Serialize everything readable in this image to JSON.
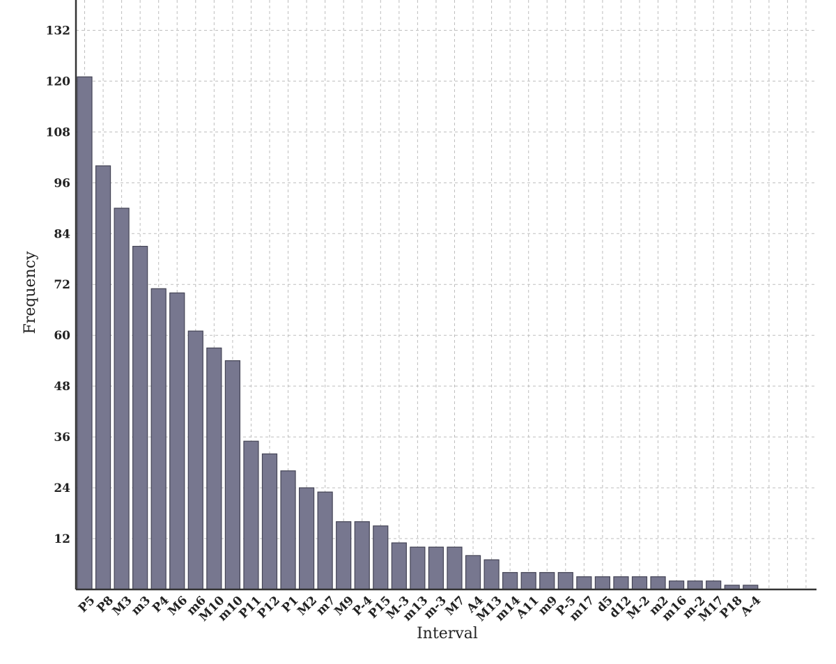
{
  "chart_data": {
    "type": "bar",
    "xlabel": "Interval",
    "ylabel": "Frequency",
    "ylim": [
      0,
      140
    ],
    "yticks": [
      12,
      24,
      36,
      48,
      60,
      72,
      84,
      96,
      108,
      120,
      132
    ],
    "grid": true,
    "bar_color": "#77778f",
    "categories": [
      "P5",
      "P8",
      "M3",
      "m3",
      "P4",
      "M6",
      "m6",
      "M10",
      "m10",
      "P11",
      "P12",
      "P1",
      "M2",
      "m7",
      "M9",
      "P-4",
      "P15",
      "M-3",
      "m13",
      "m-3",
      "M7",
      "A4",
      "M13",
      "m14",
      "A11",
      "m9",
      "P-5",
      "m17",
      "d5",
      "d12",
      "M-2",
      "m2",
      "m16",
      "m-2",
      "M17",
      "P18",
      "A-4"
    ],
    "values": [
      121,
      100,
      90,
      81,
      71,
      70,
      61,
      57,
      54,
      35,
      32,
      28,
      24,
      23,
      16,
      16,
      15,
      11,
      10,
      10,
      10,
      8,
      7,
      4,
      4,
      4,
      4,
      3,
      3,
      3,
      3,
      3,
      2,
      2,
      2,
      1,
      1
    ]
  }
}
